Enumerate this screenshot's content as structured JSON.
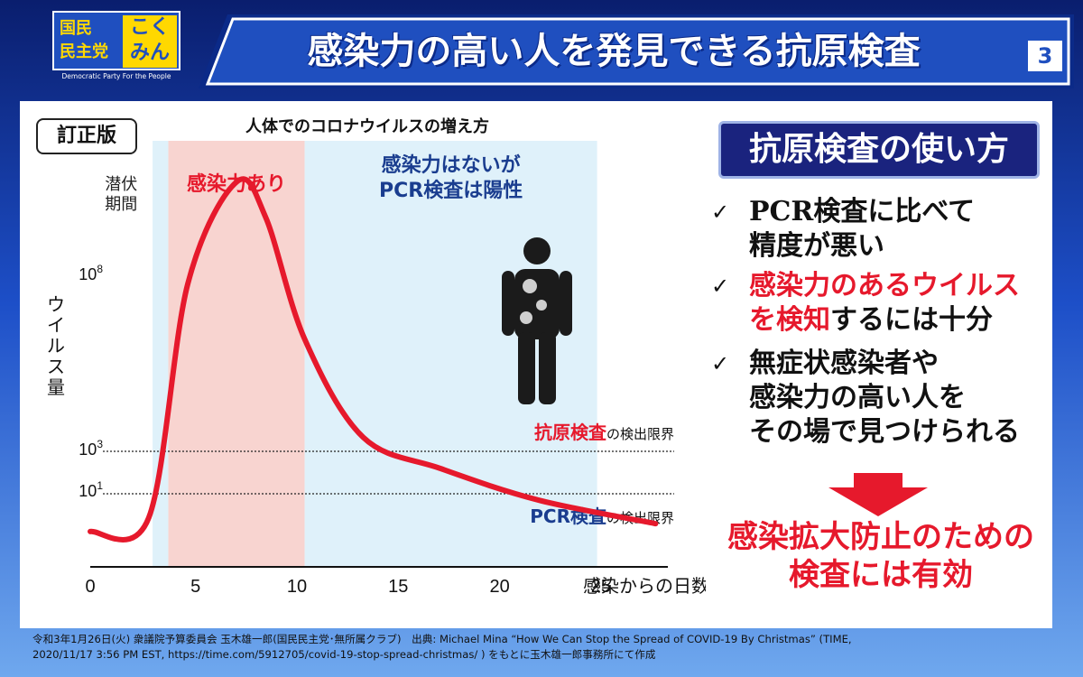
{
  "logo": {
    "line1": "国民",
    "line2": "民主党",
    "kana1": "こく",
    "kana2": "みん",
    "tagline": "Democratic Party For the People"
  },
  "header": {
    "title": "感染力の高い人を発見できる抗原検査",
    "page": "3"
  },
  "badge": "訂正版",
  "chart_data": {
    "type": "line",
    "title": "人体でのコロナウイルスの増え方",
    "xlabel": "感染からの日数",
    "ylabel": "ウイルス量",
    "x_ticks": [
      "0",
      "5",
      "10",
      "15",
      "20",
      "25"
    ],
    "y_ticks": [
      "10^8",
      "10^3",
      "10^1"
    ],
    "xlim": [
      0,
      29
    ],
    "regions": [
      {
        "label": "潜伏\n期間",
        "x": [
          0,
          4
        ],
        "color": "#ffffff"
      },
      {
        "label": "感染力あり",
        "x": [
          4,
          11
        ],
        "color": "#f8d4d0"
      },
      {
        "label": "感染力はないが\nPCR検査は陽性",
        "x": [
          11,
          26
        ],
        "color": "#dff1fa"
      }
    ],
    "thresholds": [
      {
        "level": "10^3",
        "emph": "抗原検査",
        "rest": "の検出限界",
        "color": "#e6192c"
      },
      {
        "level": "10^1",
        "emph": "PCR検査",
        "rest": "の検出限界",
        "color": "#1a3d8f"
      }
    ],
    "series": [
      {
        "x": [
          0,
          3,
          5,
          7.5,
          9,
          11,
          14,
          18,
          23,
          29
        ],
        "y": [
          0.9,
          1.25,
          7.2,
          9.8,
          8.9,
          5.8,
          3.3,
          2.5,
          1.7,
          1.1
        ],
        "color": "#e6192c"
      }
    ],
    "ylim": [
      0,
      10.5
    ]
  },
  "right": {
    "title": "抗原検査の使い方",
    "bullets": [
      {
        "lines": [
          "PCR検査に比べて",
          "精度が悪い"
        ]
      },
      {
        "l1_red": "感染力のあるウイルス",
        "l2_red": "を検知",
        "l2_rest": "するには十分"
      },
      {
        "lines": [
          "無症状感染者や",
          "感染力の高い人を",
          "その場で見つけられる"
        ]
      }
    ],
    "check": "✓",
    "conclusion": [
      "感染拡大防止のための",
      "検査には有効"
    ]
  },
  "footer": [
    "令和3年1月26日(火) 衆議院予算委員会 玉木雄一郎(国民民主党･無所属クラブ)　出典: Michael Mina “How We Can Stop the Spread of COVID-19 By Christmas” (TIME,",
    "2020/11/17 3:56 PM EST, https://time.com/5912705/covid-19-stop-spread-christmas/ ) をもとに玉木雄一郎事務所にて作成"
  ]
}
